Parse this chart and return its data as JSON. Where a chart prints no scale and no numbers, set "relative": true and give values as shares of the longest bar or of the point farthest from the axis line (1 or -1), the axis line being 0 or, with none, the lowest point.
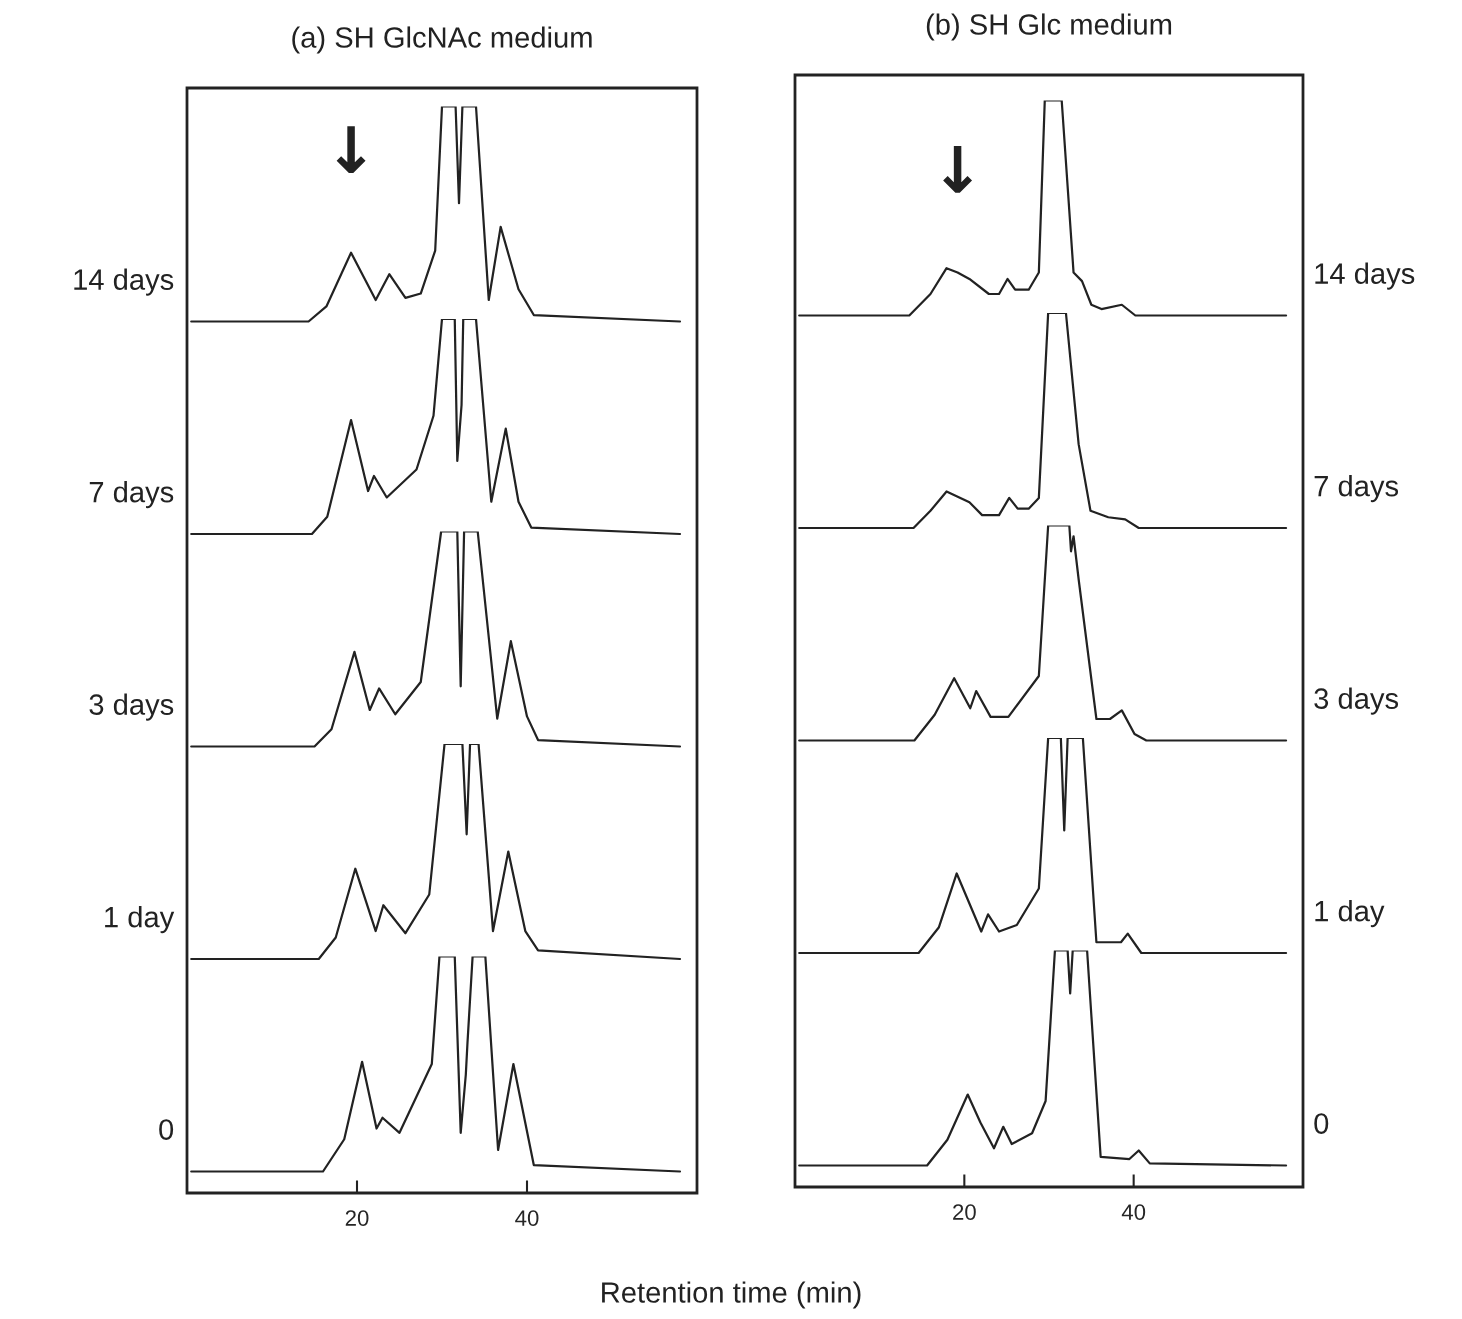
{
  "chart_data": [
    {
      "type": "line",
      "title": "(a) SH GlcNAc medium",
      "relative": true,
      "xlim": [
        0,
        60
      ],
      "tick_labels": false,
      "annotations": [
        {
          "text": "↓",
          "x": 19.3,
          "y": 0.32
        }
      ],
      "series": [
        {
          "name": "14 days",
          "color": "#222222",
          "x": [
            0.5,
            14.3,
            16.4,
            19.3,
            22.2,
            23.8,
            25.7,
            27.5,
            29.2,
            30,
            31.6,
            32,
            32.4,
            34,
            35.5,
            36.9,
            39,
            40.8,
            58
          ],
          "values": [
            0,
            0,
            0.07,
            0.32,
            0.1,
            0.22,
            0.11,
            0.13,
            0.33,
            1,
            1,
            0.55,
            1,
            1,
            0.1,
            0.44,
            0.15,
            0.03,
            0
          ]
        }
      ]
    },
    {
      "type": "line",
      "relative": true,
      "xlim": [
        0,
        60
      ],
      "tick_labels": false,
      "series": [
        {
          "name": "7 days",
          "color": "#222222",
          "x": [
            0.5,
            14.7,
            16.5,
            19.3,
            21.3,
            22,
            23.5,
            27,
            29,
            30,
            31.5,
            31.8,
            32.3,
            32.5,
            34,
            35.8,
            37.5,
            39,
            40.5,
            58
          ],
          "values": [
            0,
            0,
            0.08,
            0.53,
            0.2,
            0.27,
            0.17,
            0.3,
            0.55,
            1,
            1,
            0.34,
            0.6,
            1,
            1,
            0.15,
            0.49,
            0.15,
            0.03,
            0
          ]
        }
      ]
    },
    {
      "type": "line",
      "relative": true,
      "xlim": [
        0,
        60
      ],
      "tick_labels": false,
      "series": [
        {
          "name": "3 days",
          "color": "#222222",
          "x": [
            0.5,
            15,
            17,
            19.7,
            21.5,
            22.6,
            24.5,
            27.5,
            29.9,
            31.8,
            32.2,
            32.6,
            33.3,
            34.2,
            36.5,
            38.1,
            40,
            41.3,
            58
          ],
          "values": [
            0,
            0,
            0.08,
            0.44,
            0.17,
            0.27,
            0.15,
            0.3,
            1,
            1,
            0.28,
            1,
            1,
            1,
            0.13,
            0.49,
            0.14,
            0.03,
            0
          ]
        }
      ]
    },
    {
      "type": "line",
      "relative": true,
      "xlim": [
        0,
        60
      ],
      "tick_labels": false,
      "series": [
        {
          "name": "1 day",
          "color": "#222222",
          "x": [
            0.5,
            15.5,
            17.5,
            19.8,
            22.2,
            23.1,
            25.7,
            28.5,
            30.3,
            32.4,
            32.9,
            33.3,
            34.3,
            36,
            37.8,
            39.8,
            41.3,
            58
          ],
          "values": [
            0,
            0,
            0.1,
            0.42,
            0.13,
            0.25,
            0.12,
            0.3,
            1,
            1,
            0.58,
            1,
            1,
            0.13,
            0.5,
            0.13,
            0.04,
            0
          ]
        }
      ]
    },
    {
      "type": "line",
      "relative": true,
      "xlim": [
        0,
        60
      ],
      "xticks": [
        20,
        40
      ],
      "tick_labels": "x",
      "xlabel": "Retention time (min)",
      "series": [
        {
          "name": "0",
          "color": "#222222",
          "x": [
            0.5,
            16,
            18.5,
            20.6,
            22.3,
            23,
            25,
            28.8,
            29.7,
            31.5,
            32.2,
            32.8,
            33,
            33.6,
            35.1,
            36.6,
            38.4,
            40.8,
            58
          ],
          "values": [
            0,
            0,
            0.15,
            0.51,
            0.2,
            0.25,
            0.18,
            0.5,
            1,
            1,
            0.18,
            0.45,
            0.6,
            1,
            1,
            0.1,
            0.5,
            0.03,
            0
          ]
        }
      ]
    },
    {
      "type": "line",
      "title": "(b) SH Glc medium",
      "relative": true,
      "xlim": [
        0,
        60
      ],
      "tick_labels": false,
      "annotations": [
        {
          "text": "↓",
          "x": 19.2,
          "y": 0.2
        }
      ],
      "series": [
        {
          "name": "14 days",
          "color": "#222222",
          "x": [
            0.5,
            13.5,
            16,
            17.9,
            19.2,
            20.6,
            22.9,
            24.1,
            25.1,
            26,
            27.6,
            28.8,
            29.5,
            31.5,
            32.9,
            33.9,
            35,
            36.2,
            38.6,
            40.2,
            58
          ],
          "values": [
            0,
            0,
            0.1,
            0.22,
            0.2,
            0.17,
            0.1,
            0.1,
            0.17,
            0.12,
            0.12,
            0.2,
            1,
            1,
            0.2,
            0.16,
            0.05,
            0.03,
            0.05,
            0,
            0
          ]
        }
      ]
    },
    {
      "type": "line",
      "relative": true,
      "xlim": [
        0,
        60
      ],
      "tick_labels": false,
      "series": [
        {
          "name": "7 days",
          "color": "#222222",
          "x": [
            0.5,
            14,
            16,
            17.9,
            20.6,
            22.1,
            24.1,
            25.3,
            26.3,
            27.6,
            28.8,
            29.9,
            32,
            33.5,
            34.9,
            37,
            39,
            40.6,
            58
          ],
          "values": [
            0,
            0,
            0.08,
            0.17,
            0.12,
            0.06,
            0.06,
            0.14,
            0.09,
            0.09,
            0.14,
            1,
            1,
            0.39,
            0.08,
            0.05,
            0.04,
            0,
            0
          ]
        }
      ]
    },
    {
      "type": "line",
      "relative": true,
      "xlim": [
        0,
        60
      ],
      "tick_labels": false,
      "series": [
        {
          "name": "3 days",
          "color": "#222222",
          "x": [
            0.5,
            14.1,
            16.5,
            18.8,
            20.7,
            21.4,
            23.1,
            25.2,
            28.8,
            29.9,
            32.4,
            32.6,
            32.9,
            33.5,
            35.6,
            37.2,
            38.6,
            40.1,
            41.5,
            58
          ],
          "values": [
            0,
            0,
            0.12,
            0.29,
            0.15,
            0.23,
            0.11,
            0.11,
            0.3,
            1,
            1,
            0.88,
            0.95,
            0.75,
            0.1,
            0.1,
            0.14,
            0.03,
            0,
            0
          ]
        }
      ]
    },
    {
      "type": "line",
      "relative": true,
      "xlim": [
        0,
        60
      ],
      "tick_labels": false,
      "series": [
        {
          "name": "1 day",
          "color": "#222222",
          "x": [
            0.5,
            14.6,
            17,
            19.1,
            22,
            22.8,
            24.1,
            26.2,
            28.8,
            29.9,
            31.4,
            31.8,
            32.2,
            34,
            35.6,
            38.5,
            39.3,
            40.9,
            58
          ],
          "values": [
            0,
            0,
            0.12,
            0.37,
            0.1,
            0.18,
            0.1,
            0.13,
            0.3,
            1,
            1,
            0.57,
            1,
            1,
            0.05,
            0.05,
            0.09,
            0,
            0
          ]
        }
      ]
    },
    {
      "type": "line",
      "relative": true,
      "xlim": [
        0,
        60
      ],
      "xticks": [
        20,
        40
      ],
      "tick_labels": "x",
      "series": [
        {
          "name": "0",
          "color": "#222222",
          "x": [
            0.5,
            15.6,
            18,
            20.4,
            21.9,
            23.5,
            24.6,
            25.6,
            28,
            29.6,
            30.7,
            32.2,
            32.5,
            32.8,
            34.5,
            36.1,
            39.5,
            40.6,
            41.9,
            58
          ],
          "values": [
            0,
            0,
            0.12,
            0.33,
            0.2,
            0.08,
            0.18,
            0.1,
            0.15,
            0.3,
            1,
            1,
            0.8,
            1,
            1,
            0.04,
            0.03,
            0.07,
            0.01,
            0
          ]
        }
      ]
    }
  ]
}
